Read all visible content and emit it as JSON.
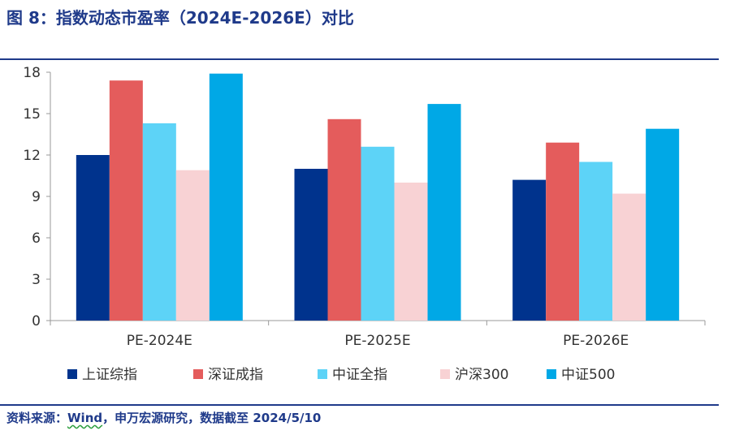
{
  "figure": {
    "title": "图 8：指数动态市盈率（2024E-2026E）对比",
    "source_prefix": "资料来源：",
    "source_wind": "Wind",
    "source_suffix": "，申万宏源研究，数据截至 2024/5/10"
  },
  "chart_data": {
    "type": "bar",
    "title": "",
    "xlabel": "",
    "ylabel": "",
    "categories": [
      "PE-2024E",
      "PE-2025E",
      "PE-2026E"
    ],
    "ylim": [
      0,
      18
    ],
    "yticks": [
      0,
      3,
      6,
      9,
      12,
      15,
      18
    ],
    "grid": false,
    "legend": "bottom",
    "series": [
      {
        "name": "上证综指",
        "color": "#00338d",
        "values": [
          12.0,
          11.0,
          10.2
        ]
      },
      {
        "name": "深证成指",
        "color": "#e45c5c",
        "values": [
          17.4,
          14.6,
          12.9
        ]
      },
      {
        "name": "中证全指",
        "color": "#5dd3f7",
        "values": [
          14.3,
          12.6,
          11.5
        ]
      },
      {
        "name": "沪深300",
        "color": "#f8d2d4",
        "values": [
          10.9,
          10.0,
          9.2
        ]
      },
      {
        "name": "中证500",
        "color": "#00a8e6",
        "values": [
          17.9,
          15.7,
          13.9
        ]
      }
    ]
  }
}
